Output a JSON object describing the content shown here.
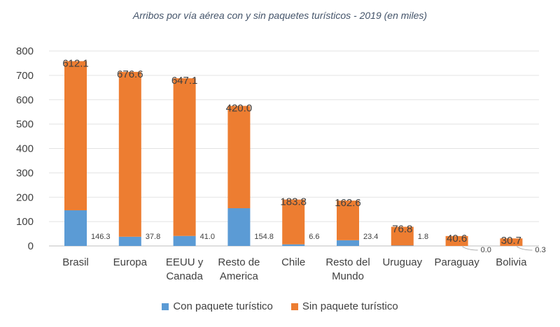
{
  "chart_data": {
    "type": "bar",
    "stacked": true,
    "title": "Arribos por vía aérea con y sin  paquetes turísticos - 2019 (en miles)",
    "categories": [
      "Brasil",
      "Europa",
      "EEUU y Canada",
      "Resto de America",
      "Chile",
      "Resto del Mundo",
      "Uruguay",
      "Paraguay",
      "Bolivia"
    ],
    "series": [
      {
        "name": "Con paquete turístico",
        "color": "#5B9BD5",
        "values": [
          146.3,
          37.8,
          41.0,
          154.8,
          6.6,
          23.4,
          1.8,
          0.0,
          0.3
        ],
        "labels": [
          "146.3",
          "37.8",
          "41.0",
          "154.8",
          "6.6",
          "23.4",
          "1.8",
          "0.0",
          "0.3"
        ]
      },
      {
        "name": "Sin paquete turístico",
        "color": "#ED7D31",
        "values": [
          612.1,
          676.6,
          647.1,
          420.0,
          183.8,
          162.6,
          76.8,
          40.6,
          30.7
        ],
        "labels": [
          "612.1",
          "676.6",
          "647.1",
          "420.0",
          "183.8",
          "162.6",
          "76.8",
          "40.6",
          "30.7"
        ]
      }
    ],
    "ylim": [
      0,
      800
    ],
    "yticks": [
      "0",
      "100",
      "200",
      "300",
      "400",
      "500",
      "600",
      "700",
      "800"
    ],
    "grid": true,
    "legend_position": "bottom"
  }
}
